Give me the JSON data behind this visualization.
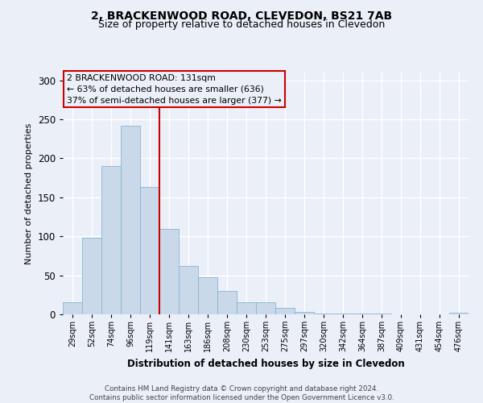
{
  "title": "2, BRACKENWOOD ROAD, CLEVEDON, BS21 7AB",
  "subtitle": "Size of property relative to detached houses in Clevedon",
  "xlabel": "Distribution of detached houses by size in Clevedon",
  "ylabel": "Number of detached properties",
  "bin_labels": [
    "29sqm",
    "52sqm",
    "74sqm",
    "96sqm",
    "119sqm",
    "141sqm",
    "163sqm",
    "186sqm",
    "208sqm",
    "230sqm",
    "253sqm",
    "275sqm",
    "297sqm",
    "320sqm",
    "342sqm",
    "364sqm",
    "387sqm",
    "409sqm",
    "431sqm",
    "454sqm",
    "476sqm"
  ],
  "bar_values": [
    15,
    98,
    190,
    242,
    163,
    110,
    62,
    48,
    30,
    15,
    15,
    8,
    3,
    1,
    1,
    1,
    1,
    0,
    0,
    0,
    2
  ],
  "bar_color": "#c9d9ea",
  "bar_edge_color": "#8ab4d4",
  "vline_color": "#cc0000",
  "annotation_box_text": "2 BRACKENWOOD ROAD: 131sqm\n← 63% of detached houses are smaller (636)\n37% of semi-detached houses are larger (377) →",
  "annotation_box_color": "#cc0000",
  "ylim": [
    0,
    310
  ],
  "yticks": [
    0,
    50,
    100,
    150,
    200,
    250,
    300
  ],
  "background_color": "#eaeff8",
  "grid_color": "#ffffff",
  "footer_line1": "Contains HM Land Registry data © Crown copyright and database right 2024.",
  "footer_line2": "Contains public sector information licensed under the Open Government Licence v3.0.",
  "title_fontsize": 10,
  "subtitle_fontsize": 9
}
